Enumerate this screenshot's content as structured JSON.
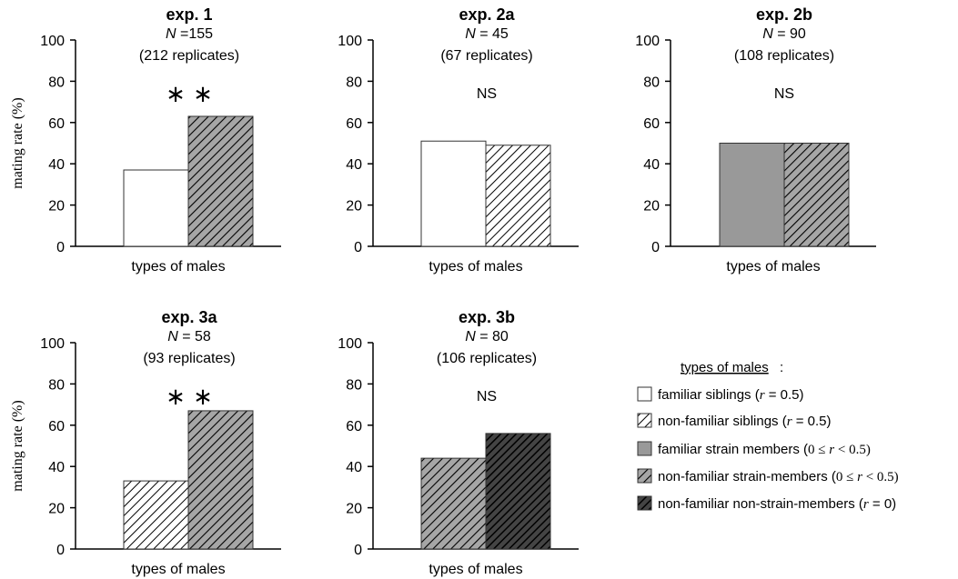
{
  "categories": {
    "fam_sib": {
      "fill": "white"
    },
    "nonfam_sib": {
      "fill": "hatch-light"
    },
    "fam_strain": {
      "fill": "#999999"
    },
    "nonfam_strain": {
      "fill": "hatch-grey"
    },
    "nonfam_nonstrain": {
      "fill": "hatch-dark"
    }
  },
  "chart_data": [
    {
      "type": "bar",
      "title": "exp. 1",
      "n_label": "N",
      "n_value": "=155",
      "replicates": "(212 replicates)",
      "annotation": "∗ ∗",
      "xlabel": "types of males",
      "ylabel": "mating rate (%)",
      "ylim": [
        0,
        100
      ],
      "yticks": [
        "0",
        "20",
        "40",
        "60",
        "80",
        "100"
      ],
      "series": [
        {
          "category": "fam_sib",
          "value": 37
        },
        {
          "category": "nonfam_strain",
          "value": 63
        }
      ]
    },
    {
      "type": "bar",
      "title": "exp. 2a",
      "n_label": "N",
      "n_value": "= 45",
      "replicates": "(67 replicates)",
      "annotation": "NS",
      "xlabel": "types of males",
      "ylabel": "",
      "ylim": [
        0,
        100
      ],
      "yticks": [
        "0",
        "20",
        "40",
        "60",
        "80",
        "100"
      ],
      "series": [
        {
          "category": "fam_sib",
          "value": 51
        },
        {
          "category": "nonfam_sib",
          "value": 49
        }
      ]
    },
    {
      "type": "bar",
      "title": "exp. 2b",
      "n_label": "N",
      "n_value": "= 90",
      "replicates": "(108 replicates)",
      "annotation": "NS",
      "xlabel": "types of males",
      "ylabel": "",
      "ylim": [
        0,
        100
      ],
      "yticks": [
        "0",
        "20",
        "40",
        "60",
        "80",
        "100"
      ],
      "series": [
        {
          "category": "fam_strain",
          "value": 50
        },
        {
          "category": "nonfam_strain",
          "value": 50
        }
      ]
    },
    {
      "type": "bar",
      "title": "exp. 3a",
      "n_label": "N",
      "n_value": "= 58",
      "replicates": "(93 replicates)",
      "annotation": "∗ ∗",
      "xlabel": "types of males",
      "ylabel": "mating rate (%)",
      "ylim": [
        0,
        100
      ],
      "yticks": [
        "0",
        "20",
        "40",
        "60",
        "80",
        "100"
      ],
      "series": [
        {
          "category": "nonfam_sib",
          "value": 33
        },
        {
          "category": "nonfam_strain",
          "value": 67
        }
      ]
    },
    {
      "type": "bar",
      "title": "exp. 3b",
      "n_label": "N",
      "n_value": "= 80",
      "replicates": "(106 replicates)",
      "annotation": "NS",
      "xlabel": "types of males",
      "ylabel": "",
      "ylim": [
        0,
        100
      ],
      "yticks": [
        "0",
        "20",
        "40",
        "60",
        "80",
        "100"
      ],
      "series": [
        {
          "category": "nonfam_strain",
          "value": 44
        },
        {
          "category": "nonfam_nonstrain",
          "value": 56
        }
      ]
    }
  ],
  "legend": {
    "title": "types of males",
    "title_suffix": ":",
    "items": [
      {
        "category": "fam_sib",
        "label": "familiar siblings",
        "r_symbol": "r",
        "r_value": "= 0.5"
      },
      {
        "category": "nonfam_sib",
        "label": "non-familiar siblings",
        "r_symbol": "r",
        "r_value": "= 0.5"
      },
      {
        "category": "fam_strain",
        "label": "familiar strain  members",
        "r_symbol": "r",
        "r_value": "< 0.5",
        "r_prefix": "0 ≤"
      },
      {
        "category": "nonfam_strain",
        "label": "non-familiar strain-members",
        "r_symbol": "r",
        "r_value": "< 0.5",
        "r_prefix": "0 ≤"
      },
      {
        "category": "nonfam_nonstrain",
        "label": "non-familiar non-strain-members",
        "r_symbol": "r",
        "r_value": "= 0"
      }
    ]
  }
}
